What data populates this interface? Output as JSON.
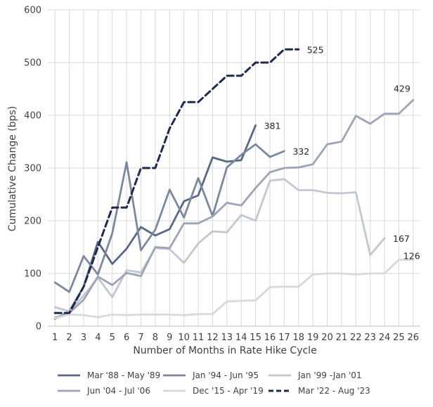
{
  "chart_data": {
    "type": "line",
    "xlabel": "Number of Months in Rate Hike Cycle",
    "ylabel": "Cumulative Change (bps)",
    "xlim": [
      1,
      26
    ],
    "ylim": [
      0,
      600
    ],
    "y_ticks": [
      0,
      100,
      200,
      300,
      400,
      500,
      600
    ],
    "x_ticks": [
      1,
      2,
      3,
      4,
      5,
      6,
      7,
      8,
      9,
      10,
      11,
      12,
      13,
      14,
      15,
      16,
      17,
      18,
      19,
      20,
      21,
      22,
      23,
      24,
      25,
      26
    ],
    "grid": "both",
    "legend_position": "bottom",
    "series": [
      {
        "name": "Mar '88 - May '89",
        "color": "#5a6983",
        "dash": false,
        "x": [
          1,
          2,
          3,
          4,
          5,
          6,
          7,
          8,
          9,
          10,
          11,
          12,
          13,
          14,
          15
        ],
        "values": [
          14,
          28,
          75,
          160,
          118,
          147,
          188,
          172,
          184,
          237,
          248,
          320,
          312,
          315,
          381
        ],
        "end_label": "381"
      },
      {
        "name": "Jan '94 - Jun '95",
        "color": "#7c889e",
        "dash": false,
        "x": [
          1,
          2,
          3,
          4,
          5,
          6,
          7,
          8,
          9,
          10,
          11,
          12,
          13,
          14,
          15,
          16,
          17
        ],
        "values": [
          83,
          65,
          133,
          98,
          176,
          311,
          144,
          183,
          259,
          206,
          281,
          209,
          301,
          325,
          345,
          321,
          332
        ],
        "end_label": "332"
      },
      {
        "name": "Jan '99 -Jan '01",
        "color": "#c2c8d2",
        "dash": false,
        "x": [
          1,
          2,
          3,
          4,
          5,
          6,
          7,
          8,
          9,
          10,
          11,
          12,
          13,
          14,
          15,
          16,
          17,
          18,
          19,
          20,
          21,
          22,
          23,
          24
        ],
        "values": [
          36,
          28,
          58,
          92,
          55,
          106,
          102,
          148,
          146,
          120,
          157,
          180,
          178,
          211,
          200,
          276,
          279,
          258,
          258,
          253,
          252,
          254,
          135,
          167
        ],
        "end_label": "167"
      },
      {
        "name": "Jun '04 - Jul '06",
        "color": "#9da5b5",
        "dash": false,
        "x": [
          1,
          2,
          3,
          4,
          5,
          6,
          7,
          8,
          9,
          10,
          11,
          12,
          13,
          14,
          15,
          16,
          17,
          18,
          19,
          20,
          21,
          22,
          23,
          24,
          25,
          26
        ],
        "values": [
          16,
          25,
          50,
          94,
          78,
          101,
          95,
          150,
          148,
          195,
          195,
          208,
          234,
          229,
          262,
          292,
          300,
          301,
          307,
          345,
          350,
          399,
          384,
          403,
          403,
          429
        ],
        "end_label": "429"
      },
      {
        "name": "Dec '15 - Apr '19",
        "color": "#d5d9e0",
        "dash": false,
        "x": [
          1,
          2,
          3,
          4,
          5,
          6,
          7,
          8,
          9,
          10,
          11,
          12,
          13,
          14,
          15,
          16,
          17,
          18,
          19,
          20,
          21,
          22,
          23,
          24,
          25,
          26
        ],
        "values": [
          15,
          22,
          21,
          17,
          22,
          21,
          22,
          22,
          22,
          21,
          23,
          23,
          47,
          48,
          49,
          74,
          75,
          75,
          98,
          100,
          100,
          98,
          100,
          100,
          126,
          126
        ],
        "end_label": "126"
      },
      {
        "name": "Mar '22 - Aug '23",
        "color": "#1f2b4d",
        "dash": true,
        "x": [
          1,
          2,
          3,
          4,
          5,
          6,
          7,
          8,
          9,
          10,
          11,
          12,
          13,
          14,
          15,
          16,
          17,
          18
        ],
        "values": [
          25,
          25,
          75,
          150,
          225,
          225,
          300,
          300,
          375,
          425,
          425,
          450,
          475,
          475,
          500,
          500,
          525,
          525
        ],
        "end_label": "525"
      }
    ]
  }
}
